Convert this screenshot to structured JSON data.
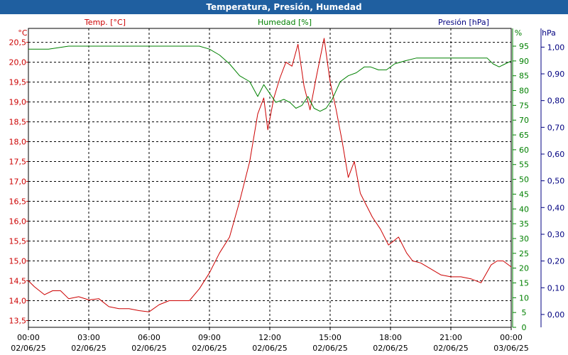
{
  "window": {
    "title": "Temperatura, Presión, Humedad"
  },
  "colors": {
    "temperature": "#cc0000",
    "humidity": "#008000",
    "pressure": "#000080",
    "titlebar": "#1f5fa0",
    "grid": "#000000",
    "axis": "#000000"
  },
  "chart_data": {
    "type": "line",
    "title": "Temperatura, Presión, Humedad",
    "grid": true,
    "x_axis": {
      "ticks": [
        {
          "time": "00:00",
          "date": "02/06/25"
        },
        {
          "time": "03:00",
          "date": "02/06/25"
        },
        {
          "time": "06:00",
          "date": "02/06/25"
        },
        {
          "time": "09:00",
          "date": "02/06/25"
        },
        {
          "time": "12:00",
          "date": "02/06/25"
        },
        {
          "time": "15:00",
          "date": "02/06/25"
        },
        {
          "time": "18:00",
          "date": "02/06/25"
        },
        {
          "time": "21:00",
          "date": "02/06/25"
        },
        {
          "time": "00:00",
          "date": "03/06/25"
        }
      ]
    },
    "axes": {
      "temperature": {
        "label": "Temp. [°C]",
        "unit": "°C",
        "ylim": [
          13.33,
          20.85
        ],
        "ticks": [
          "13,5",
          "14,0",
          "14,5",
          "15,0",
          "15,5",
          "16,0",
          "16,5",
          "17,0",
          "17,5",
          "18,0",
          "18,5",
          "19,0",
          "19,5",
          "20,0",
          "20,5"
        ]
      },
      "humidity": {
        "label": "Humedad [%]",
        "unit": "%",
        "ylim": [
          0,
          101
        ],
        "ticks": [
          "0",
          "5",
          "10",
          "15",
          "20",
          "25",
          "30",
          "35",
          "40",
          "45",
          "50",
          "55",
          "60",
          "65",
          "70",
          "75",
          "80",
          "85",
          "90",
          "95"
        ]
      },
      "pressure": {
        "label": "Presión [hPa]",
        "unit": "hPa",
        "ylim": [
          -0.048,
          1.07
        ],
        "ticks": [
          "0,00",
          "0,10",
          "0,20",
          "0,30",
          "0,40",
          "0,50",
          "0,60",
          "0,70",
          "0,80",
          "0,90",
          "1,00"
        ]
      }
    },
    "series": [
      {
        "name": "Temp. [°C]",
        "axis": "temperature",
        "x": [
          0,
          0.3,
          0.8,
          1.2,
          1.6,
          2.0,
          2.5,
          3.0,
          3.5,
          4.0,
          4.5,
          5.0,
          5.5,
          6.0,
          6.5,
          7.0,
          7.5,
          8.0,
          8.5,
          9.0,
          9.5,
          10.0,
          10.5,
          11.0,
          11.4,
          11.7,
          11.9,
          12.2,
          12.5,
          12.8,
          13.1,
          13.4,
          13.7,
          14.0,
          14.3,
          14.7,
          15.0,
          15.3,
          15.6,
          15.9,
          16.2,
          16.5,
          16.8,
          17.1,
          17.5,
          17.9,
          18.4,
          18.8,
          19.1,
          19.5,
          20.0,
          20.5,
          21.0,
          21.5,
          22.0,
          22.5,
          23.0,
          23.3,
          23.6,
          24.0
        ],
        "y": [
          14.5,
          14.35,
          14.15,
          14.25,
          14.25,
          14.05,
          14.1,
          14.02,
          14.05,
          13.85,
          13.8,
          13.8,
          13.75,
          13.72,
          13.9,
          14.0,
          14.0,
          14.0,
          14.3,
          14.7,
          15.2,
          15.6,
          16.5,
          17.5,
          18.7,
          19.1,
          18.3,
          19.1,
          19.6,
          20.0,
          19.9,
          20.45,
          19.4,
          18.8,
          19.6,
          20.6,
          19.5,
          18.8,
          18.0,
          17.1,
          17.5,
          16.7,
          16.4,
          16.1,
          15.8,
          15.4,
          15.6,
          15.2,
          15.0,
          14.95,
          14.8,
          14.65,
          14.6,
          14.6,
          14.55,
          14.45,
          14.9,
          15.0,
          15.0,
          14.85
        ]
      },
      {
        "name": "Humedad [%]",
        "axis": "humidity",
        "x": [
          0,
          1,
          2,
          3,
          4,
          5,
          6,
          7,
          8,
          8.5,
          9.0,
          9.5,
          10.0,
          10.5,
          11.0,
          11.4,
          11.7,
          12.0,
          12.3,
          12.7,
          13.0,
          13.3,
          13.6,
          13.9,
          14.2,
          14.5,
          14.8,
          15.1,
          15.5,
          15.9,
          16.3,
          16.7,
          17.0,
          17.4,
          17.8,
          18.2,
          18.7,
          19.3,
          20.0,
          21.0,
          22.0,
          22.8,
          23.1,
          23.4,
          23.7,
          24.0
        ],
        "y": [
          94,
          94,
          95,
          95,
          95,
          95,
          95,
          95,
          95,
          95,
          94,
          92,
          89,
          85,
          83,
          78,
          82,
          79,
          76,
          77,
          76,
          74,
          75,
          78,
          74,
          73,
          74,
          77,
          83,
          85,
          86,
          88,
          88,
          87,
          87,
          89,
          90,
          91,
          91,
          91,
          91,
          91,
          89,
          88,
          89,
          90
        ]
      },
      {
        "name": "Presión [hPa]",
        "axis": "pressure",
        "x": [],
        "y": []
      }
    ]
  }
}
